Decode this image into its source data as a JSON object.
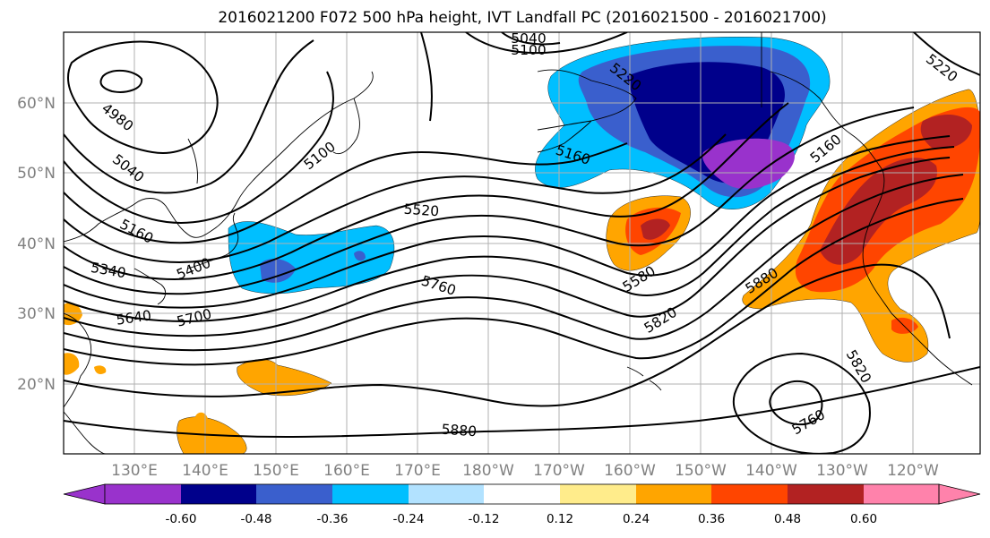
{
  "title": "2016021200 F072 500 hPa height, IVT Landfall PC (2016021500 - 2016021700)",
  "lat_labels": [
    "60°N",
    "50°N",
    "40°N",
    "30°N",
    "20°N"
  ],
  "lon_labels": [
    "130°E",
    "140°E",
    "150°E",
    "160°E",
    "170°E",
    "180°W",
    "170°W",
    "160°W",
    "150°W",
    "140°W",
    "130°W",
    "120°W"
  ],
  "colorbar": {
    "tick_labels": [
      "-0.60",
      "-0.48",
      "-0.36",
      "-0.24",
      "-0.12",
      "0.12",
      "0.24",
      "0.36",
      "0.48",
      "0.60"
    ],
    "colors": [
      "#9932cc",
      "#00008b",
      "#3a5fcd",
      "#00bfff",
      "#b2e2ff",
      "#ffffff",
      "#ffec8b",
      "#ffa500",
      "#ff4500",
      "#b22222",
      "#ff82ab"
    ]
  },
  "contour_labels": [
    "5040",
    "5100",
    "5220",
    "4980",
    "5040",
    "5100",
    "5160",
    "5160",
    "5220",
    "5340",
    "5400",
    "5520",
    "5580",
    "5640",
    "5700",
    "5760",
    "5820",
    "5880",
    "5880",
    "5820",
    "5760",
    "5160"
  ],
  "map": {
    "projection": "equirectangular",
    "lon_range": "120°E – 115°W",
    "lat_range": "10°N – 70°N",
    "field": "500 hPa height contours (m), IVT landfall PC shaded"
  }
}
